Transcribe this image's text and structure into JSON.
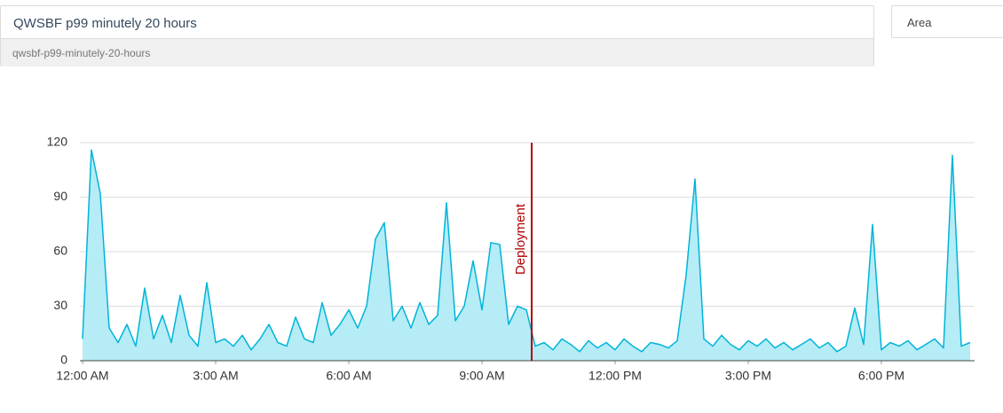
{
  "header": {
    "title": "QWSBF p99 minutely 20 hours",
    "slug": "qwsbf-p99-minutely-20-hours",
    "chart_type_select": "Area"
  },
  "chart_data": {
    "type": "area",
    "color": "#00b4d8",
    "fill": "#b5ecf6",
    "x": [
      0,
      0.2,
      0.4,
      0.6,
      0.8,
      1,
      1.2,
      1.4,
      1.6,
      1.8,
      2,
      2.2,
      2.4,
      2.6,
      2.8,
      3,
      3.2,
      3.4,
      3.6,
      3.8,
      4,
      4.2,
      4.4,
      4.6,
      4.8,
      5,
      5.2,
      5.4,
      5.6,
      5.8,
      6,
      6.2,
      6.4,
      6.6,
      6.8,
      7,
      7.2,
      7.4,
      7.6,
      7.8,
      8,
      8.2,
      8.4,
      8.6,
      8.8,
      9,
      9.2,
      9.4,
      9.6,
      9.8,
      10,
      10.2,
      10.4,
      10.6,
      10.8,
      11,
      11.2,
      11.4,
      11.6,
      11.8,
      12,
      12.2,
      12.4,
      12.6,
      12.8,
      13,
      13.2,
      13.4,
      13.6,
      13.8,
      14,
      14.2,
      14.4,
      14.6,
      14.8,
      15,
      15.2,
      15.4,
      15.6,
      15.8,
      16,
      16.2,
      16.4,
      16.6,
      16.8,
      17,
      17.2,
      17.4,
      17.6,
      17.8,
      18,
      18.2,
      18.4,
      18.6,
      18.8,
      19,
      19.2,
      19.4,
      19.6,
      19.8,
      20
    ],
    "values": [
      12,
      116,
      92,
      18,
      10,
      20,
      8,
      40,
      12,
      25,
      10,
      36,
      14,
      8,
      43,
      10,
      12,
      8,
      14,
      6,
      12,
      20,
      10,
      8,
      24,
      12,
      10,
      32,
      14,
      20,
      28,
      18,
      30,
      67,
      76,
      22,
      30,
      18,
      32,
      20,
      25,
      87,
      22,
      30,
      55,
      28,
      65,
      64,
      20,
      30,
      28,
      8,
      10,
      6,
      12,
      9,
      5,
      11,
      7,
      10,
      6,
      12,
      8,
      5,
      10,
      9,
      7,
      11,
      47,
      100,
      12,
      8,
      14,
      9,
      6,
      11,
      8,
      12,
      7,
      10,
      6,
      9,
      12,
      7,
      10,
      5,
      8,
      29,
      9,
      75,
      6,
      10,
      8,
      11,
      6,
      9,
      12,
      7,
      113,
      8,
      10
    ],
    "xlim": [
      0,
      20.1
    ],
    "xticks": [
      {
        "value": 0,
        "label": "12:00 AM"
      },
      {
        "value": 3,
        "label": "3:00 AM"
      },
      {
        "value": 6,
        "label": "6:00 AM"
      },
      {
        "value": 9,
        "label": "9:00 AM"
      },
      {
        "value": 12,
        "label": "12:00 PM"
      },
      {
        "value": 15,
        "label": "3:00 PM"
      },
      {
        "value": 18,
        "label": "6:00 PM"
      }
    ],
    "ylim": [
      0,
      120
    ],
    "yticks": [
      0,
      30,
      60,
      90,
      120
    ],
    "grid": true,
    "annotations": [
      {
        "label": "Deployment",
        "x": 10.12,
        "color": "#b00000"
      }
    ]
  }
}
